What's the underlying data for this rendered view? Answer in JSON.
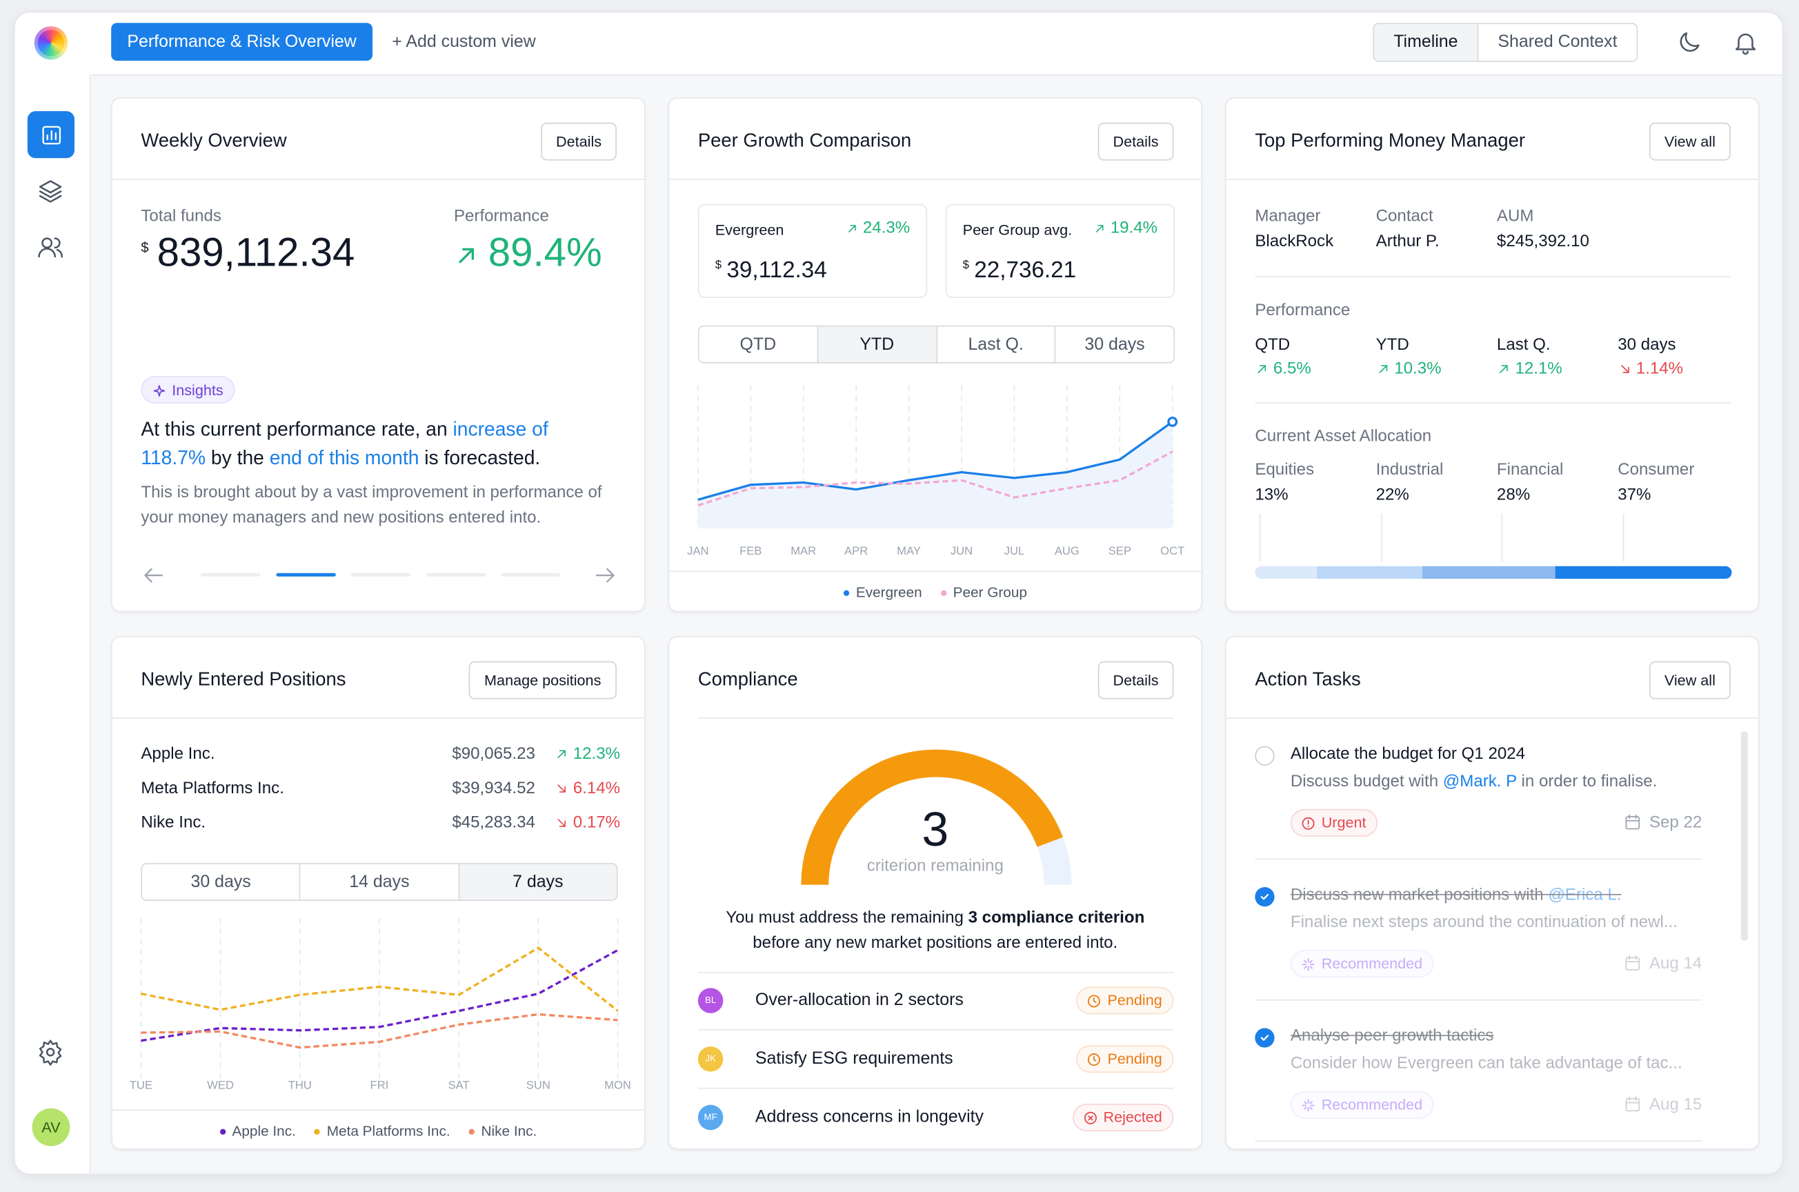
{
  "header": {
    "active_view": "Performance & Risk Overview",
    "add_view": "+ Add custom view",
    "toggle": [
      "Timeline",
      "Shared Context"
    ],
    "selected_toggle": 0
  },
  "sidebar": {
    "avatar": "AV"
  },
  "weekly_overview": {
    "title": "Weekly Overview",
    "button": "Details",
    "total_label": "Total funds",
    "currency": "$",
    "total": "839,112.34",
    "performance_label": "Performance",
    "performance": "89.4%",
    "badge": "Insights",
    "insight": [
      "At this current performance rate, an ",
      "increase of 118.7%",
      " by the ",
      "end of this month",
      " is forecasted."
    ],
    "note": "This is brought about by a vast improvement in performance of your money managers and new positions entered into.",
    "page": 1,
    "pages": 5
  },
  "peer_growth": {
    "title": "Peer Growth Comparison",
    "button": "Details",
    "cards": [
      {
        "name": "Evergreen",
        "change": "24.3%",
        "currency": "$",
        "value": "39,112.34"
      },
      {
        "name": "Peer Group avg.",
        "change": "19.4%",
        "currency": "$",
        "value": "22,736.21"
      }
    ],
    "periods": [
      "QTD",
      "YTD",
      "Last Q.",
      "30 days"
    ],
    "selected": 1
  },
  "top_manager": {
    "title": "Top Performing Money Manager",
    "button": "View all",
    "fields": [
      {
        "label": "Manager",
        "value": "BlackRock"
      },
      {
        "label": "Contact",
        "value": "Arthur P."
      },
      {
        "label": "AUM",
        "value": "$245,392.10"
      }
    ],
    "performance_label": "Performance",
    "performance": [
      {
        "period": "QTD",
        "change": "6.5%",
        "trend": "up"
      },
      {
        "period": "YTD",
        "change": "10.3%",
        "trend": "up"
      },
      {
        "period": "Last Q.",
        "change": "12.1%",
        "trend": "up"
      },
      {
        "period": "30 days",
        "change": "1.14%",
        "trend": "down"
      }
    ],
    "allocation_label": "Current Asset Allocation",
    "allocation": {
      "categories": [
        "Equities",
        "Industrial",
        "Financial",
        "Consumer"
      ],
      "values": [
        13,
        22,
        28,
        37
      ],
      "value_labels": [
        "13%",
        "22%",
        "28%",
        "37%"
      ],
      "colors": [
        "#dce9fb",
        "#bcd7f7",
        "#8cb9ef",
        "#1a7fe8"
      ]
    }
  },
  "positions": {
    "title": "Newly Entered Positions",
    "button": "Manage positions",
    "rows": [
      {
        "name": "Apple Inc.",
        "amount": "$90,065.23",
        "change": "12.3%",
        "trend": "up"
      },
      {
        "name": "Meta Platforms Inc.",
        "amount": "$39,934.52",
        "change": "6.14%",
        "trend": "down"
      },
      {
        "name": "Nike Inc.",
        "amount": "$45,283.34",
        "change": "0.17%",
        "trend": "down"
      }
    ],
    "periods": [
      "30 days",
      "14 days",
      "7 days"
    ],
    "selected": 2
  },
  "compliance": {
    "title": "Compliance",
    "button": "Details",
    "count": "3",
    "count_label": "criterion remaining",
    "message": [
      "You must address the remaining ",
      "3 compliance criterion",
      " before any new market positions are entered into."
    ],
    "items": [
      {
        "initials": "BL",
        "avatar_color": "#b455e6",
        "text": "Over-allocation in 2 sectors",
        "status": "Pending",
        "status_color": "#ea7a12"
      },
      {
        "initials": "JK",
        "avatar_color": "#f4c542",
        "text": "Satisfy ESG requirements",
        "status": "Pending",
        "status_color": "#ea7a12"
      },
      {
        "initials": "MF",
        "avatar_color": "#5aa9f0",
        "text": "Address concerns in longevity",
        "status": "Rejected",
        "status_color": "#e5484d"
      }
    ]
  },
  "action_tasks": {
    "title": "Action Tasks",
    "button": "View all",
    "tasks": [
      {
        "done": false,
        "title": [
          "Allocate the budget for Q1 2024"
        ],
        "description": [
          "Discuss budget with ",
          "@Mark. P",
          " in order to finalise."
        ],
        "tag": "Urgent",
        "tag_color": "#e5484d",
        "date": "Sep 22"
      },
      {
        "done": true,
        "title": [
          "Discuss new market positions with ",
          "@Erica L."
        ],
        "description": [
          "Finalise next steps around the continuation of newl..."
        ],
        "tag": "Recommended",
        "tag_color": "#8b5cf6",
        "date": "Aug 14"
      },
      {
        "done": true,
        "title": [
          "Analyse peer growth tactics"
        ],
        "description": [
          "Consider how Evergreen can take advantage of tac..."
        ],
        "tag": "Recommended",
        "tag_color": "#8b5cf6",
        "date": "Aug 15"
      }
    ]
  },
  "chart_data": [
    {
      "type": "line",
      "categories": [
        "JAN",
        "FEB",
        "MAR",
        "APR",
        "MAY",
        "JUN",
        "JUL",
        "AUG",
        "SEP",
        "OCT"
      ],
      "series": [
        {
          "name": "Evergreen",
          "color": "#1a7fe8",
          "values": [
            25,
            38,
            40,
            34,
            42,
            49,
            44,
            49,
            60,
            93
          ]
        },
        {
          "name": "Peer Group",
          "color": "#f2a9d2",
          "values": [
            20,
            35,
            36,
            40,
            39,
            42,
            27,
            35,
            42,
            67
          ]
        }
      ]
    },
    {
      "type": "line",
      "categories": [
        "TUE",
        "WED",
        "THU",
        "FRI",
        "SAT",
        "SUN",
        "MON"
      ],
      "series": [
        {
          "name": "Apple Inc.",
          "color": "#6a1fc9",
          "values": [
            33,
            44,
            42,
            45,
            59,
            74,
            112
          ]
        },
        {
          "name": "Meta Platforms Inc.",
          "color": "#f0b020",
          "values": [
            74,
            60,
            73,
            80,
            73,
            114,
            59
          ]
        },
        {
          "name": "Nike Inc.",
          "color": "#f28860",
          "values": [
            40,
            41,
            27,
            32,
            47,
            56,
            51
          ]
        }
      ]
    }
  ]
}
